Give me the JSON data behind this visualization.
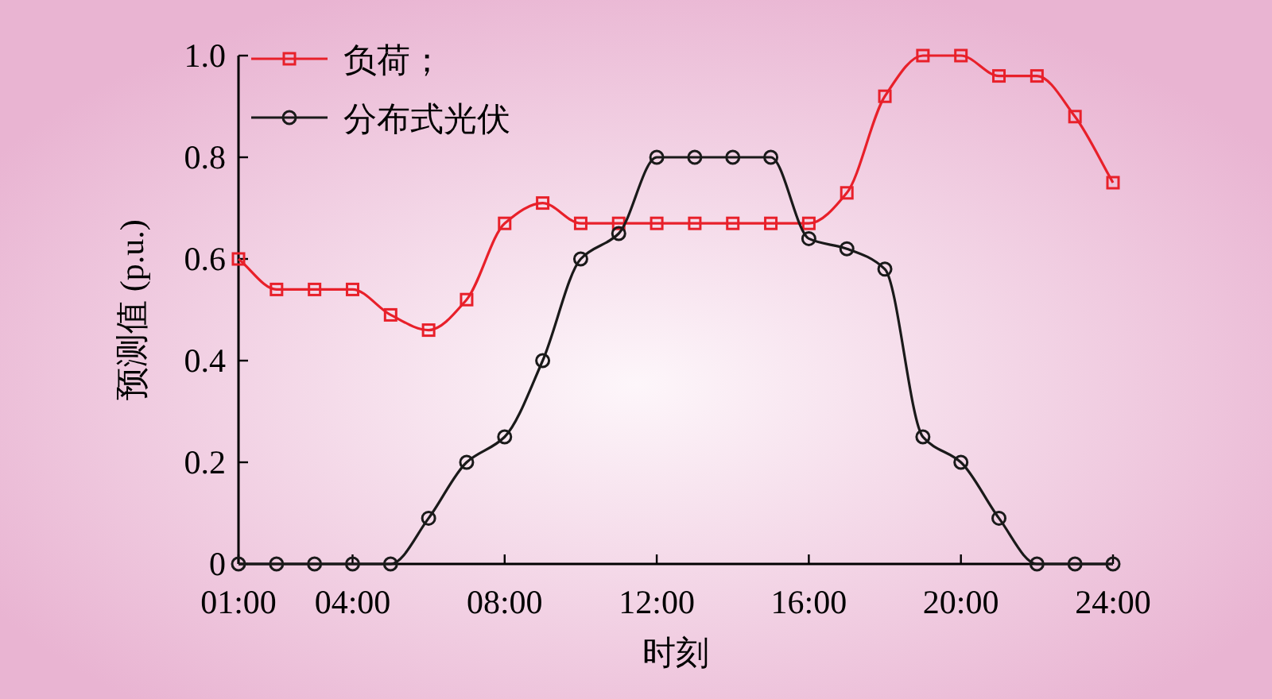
{
  "chart_data": {
    "type": "line",
    "xlabel": "时刻",
    "ylabel": "预测值 (p.u.)",
    "x": [
      1,
      2,
      3,
      4,
      5,
      6,
      7,
      8,
      9,
      10,
      11,
      12,
      13,
      14,
      15,
      16,
      17,
      18,
      19,
      20,
      21,
      22,
      23,
      24
    ],
    "xlim": [
      1,
      24
    ],
    "xticks": [
      {
        "value": 1,
        "label": "01:00"
      },
      {
        "value": 4,
        "label": "04:00"
      },
      {
        "value": 8,
        "label": "08:00"
      },
      {
        "value": 12,
        "label": "12:00"
      },
      {
        "value": 16,
        "label": "16:00"
      },
      {
        "value": 20,
        "label": "20:00"
      },
      {
        "value": 24,
        "label": "24:00"
      }
    ],
    "ylim": [
      0,
      1.0
    ],
    "yticks": [
      0,
      0.2,
      0.4,
      0.6,
      0.8,
      {
        "value": 1.0,
        "label": "1.0"
      }
    ],
    "legend": "top left",
    "grid": false,
    "line_style": "solid",
    "series": [
      {
        "name": "负荷；",
        "color": "#e8202a",
        "marker": "square",
        "values": [
          0.6,
          0.54,
          0.54,
          0.54,
          0.49,
          0.46,
          0.52,
          0.67,
          0.71,
          0.67,
          0.67,
          0.67,
          0.67,
          0.67,
          0.67,
          0.67,
          0.73,
          0.92,
          1.0,
          1.0,
          0.96,
          0.96,
          0.88,
          0.75
        ]
      },
      {
        "name": "分布式光伏",
        "color": "#1a1a1a",
        "marker": "circle",
        "values": [
          0,
          0,
          0,
          0,
          0,
          0.09,
          0.2,
          0.25,
          0.4,
          0.6,
          0.65,
          0.8,
          0.8,
          0.8,
          0.8,
          0.64,
          0.62,
          0.58,
          0.25,
          0.2,
          0.09,
          0,
          0,
          0
        ]
      }
    ]
  }
}
